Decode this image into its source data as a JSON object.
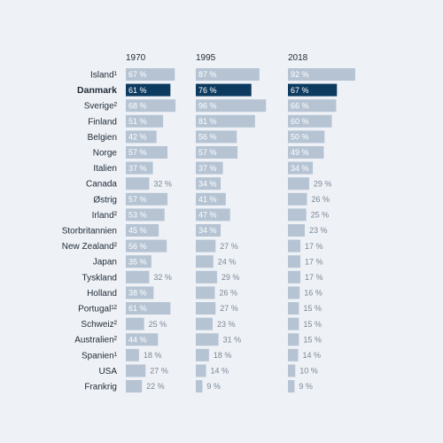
{
  "chart_data": {
    "type": "bar",
    "orientation": "horizontal",
    "title": "",
    "xlabel": "",
    "ylabel": "",
    "xlim": [
      0,
      100
    ],
    "highlight_category": "Danmark",
    "value_suffix": " %",
    "colors": {
      "bar": "#b5c3d3",
      "highlight": "#0d3a5f",
      "label_inside": "#ffffff",
      "label_outside": "#7c8896",
      "text": "#1f2a36",
      "background": "#eef1f6"
    },
    "categories": [
      "Island¹",
      "Danmark",
      "Sverige²",
      "Finland",
      "Belgien",
      "Norge",
      "Italien",
      "Canada",
      "Østrig",
      "Irland²",
      "Storbritannien",
      "New Zealand²",
      "Japan",
      "Tyskland",
      "Holland",
      "Portugal¹²",
      "Schweiz²",
      "Australien²",
      "Spanien¹",
      "USA",
      "Frankrig"
    ],
    "series": [
      {
        "name": "1970",
        "values": [
          67,
          61,
          68,
          51,
          42,
          57,
          37,
          32,
          57,
          53,
          45,
          56,
          35,
          32,
          38,
          61,
          25,
          44,
          18,
          27,
          22
        ]
      },
      {
        "name": "1995",
        "values": [
          87,
          76,
          96,
          81,
          56,
          57,
          37,
          34,
          41,
          47,
          34,
          27,
          24,
          29,
          26,
          27,
          23,
          31,
          18,
          14,
          9
        ]
      },
      {
        "name": "2018",
        "values": [
          92,
          67,
          66,
          60,
          50,
          49,
          34,
          29,
          26,
          25,
          23,
          17,
          17,
          17,
          16,
          15,
          15,
          15,
          14,
          10,
          9
        ]
      }
    ]
  }
}
